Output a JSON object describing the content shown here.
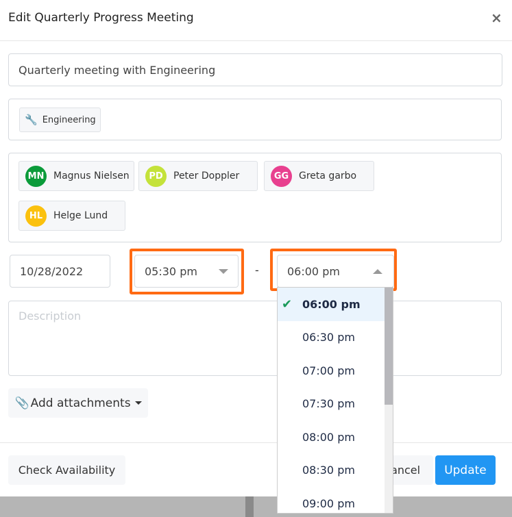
{
  "dialog": {
    "title": "Edit Quarterly Progress Meeting",
    "close_label": "×"
  },
  "form": {
    "title_value": "Quarterly meeting with Engineering",
    "team": {
      "label": "Engineering",
      "icon": "wrench-icon"
    },
    "attendees": [
      {
        "initials": "MN",
        "name": "Magnus Nielsen",
        "color": "#0b9b3a"
      },
      {
        "initials": "PD",
        "name": "Peter Doppler",
        "color": "#c4e23a"
      },
      {
        "initials": "GG",
        "name": "Greta garbo",
        "color": "#e8408f"
      },
      {
        "initials": "HL",
        "name": "Helge Lund",
        "color": "#fbc10e"
      }
    ],
    "date": "10/28/2022",
    "start_time": "05:30 pm",
    "separator": "-",
    "end_time": "06:00 pm",
    "description_placeholder": "Description",
    "attachments_label": "Add attachments"
  },
  "end_time_options": {
    "selected": "06:00 pm",
    "items": [
      "06:00 pm",
      "06:30 pm",
      "07:00 pm",
      "07:30 pm",
      "08:00 pm",
      "08:30 pm",
      "09:00 pm"
    ]
  },
  "footer": {
    "check_availability": "Check Availability",
    "cancel": "Cancel",
    "update": "Update"
  },
  "colors": {
    "accent": "#2196f3",
    "highlight": "#ff6a13",
    "check": "#1a9a5a"
  }
}
